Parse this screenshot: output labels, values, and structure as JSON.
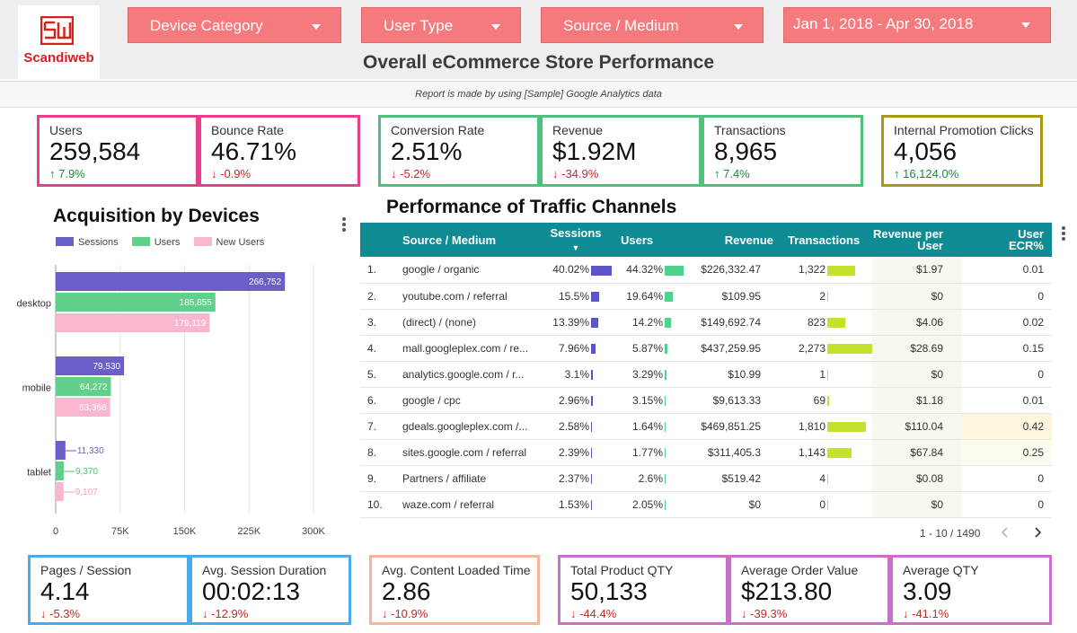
{
  "brand": {
    "name": "Scandiweb",
    "mark": "SW",
    "color": "#d52020"
  },
  "filters": {
    "device_category": "Device Category",
    "user_type": "User Type",
    "source_medium": "Source / Medium",
    "date_range": "Jan 1, 2018 - Apr 30, 2018"
  },
  "page_title": "Overall eCommerce Store Performance",
  "subtitle": "Report is made by using [Sample] Google Analytics data",
  "kpis_top": [
    {
      "label": "Users",
      "value": "259,584",
      "delta": "↑ 7.9%",
      "trend": "up"
    },
    {
      "label": "Bounce Rate",
      "value": "46.71%",
      "delta": "↓ -0.9%",
      "trend": "down"
    },
    {
      "label": "Conversion Rate",
      "value": "2.51%",
      "delta": "↓ -5.2%",
      "trend": "down"
    },
    {
      "label": "Revenue",
      "value": "$1.92M",
      "delta": "↓ -34.9%",
      "trend": "down"
    },
    {
      "label": "Transactions",
      "value": "8,965",
      "delta": "↑ 7.4%",
      "trend": "up"
    },
    {
      "label": "Internal Promotion Clicks",
      "value": "4,056",
      "delta": "↑ 16,124.0%",
      "trend": "up"
    }
  ],
  "kpis_bottom": [
    {
      "label": "Pages / Session",
      "value": "4.14",
      "delta": "↓ -5.3%",
      "trend": "down"
    },
    {
      "label": "Avg. Session Duration",
      "value": "00:02:13",
      "delta": "↓ -12.9%",
      "trend": "down"
    },
    {
      "label": "Avg. Content Loaded Time",
      "value": "2.86",
      "delta": "↓ -10.9%",
      "trend": "down"
    },
    {
      "label": "Total Product QTY",
      "value": "50,133",
      "delta": "↓ -44.4%",
      "trend": "down"
    },
    {
      "label": "Average Order Value",
      "value": "$213.80",
      "delta": "↓ -39.3%",
      "trend": "down"
    },
    {
      "label": "Average QTY",
      "value": "3.09",
      "delta": "↓ -41.1%",
      "trend": "down"
    }
  ],
  "colors": {
    "pink": "#e83e8c",
    "green": "#4fc17a",
    "olive": "#a89a10",
    "blue": "#4aa9e8",
    "peach": "#f3b69a",
    "violet": "#c670c9",
    "sessions": "#6a5fc8",
    "users": "#62d08a",
    "new_users": "#f8b6cf",
    "table_header": "#0f8b94",
    "sessions_bar": "#5b55c8",
    "users_bar": "#4dd38d",
    "transactions_bar": "#c3e22c"
  },
  "acquisition": {
    "title": "Acquisition by Devices",
    "chart_data": {
      "type": "bar",
      "orientation": "horizontal",
      "categories": [
        "desktop",
        "mobile",
        "tablet"
      ],
      "series": [
        {
          "name": "Sessions",
          "values": [
            266752,
            79530,
            11330
          ],
          "labels": [
            "266,752",
            "79,530",
            "11,330"
          ]
        },
        {
          "name": "Users",
          "values": [
            185855,
            64272,
            9370
          ],
          "labels": [
            "185,855",
            "64,272",
            "9,370"
          ]
        },
        {
          "name": "New Users",
          "values": [
            179119,
            63366,
            9107
          ],
          "labels": [
            "179,119",
            "63,366",
            "9,107"
          ]
        }
      ],
      "xlim": [
        0,
        300000
      ],
      "xticks": [
        0,
        75000,
        150000,
        225000,
        300000
      ],
      "xtick_labels": [
        "0",
        "75K",
        "150K",
        "225K",
        "300K"
      ],
      "legend": "top",
      "grid": true
    }
  },
  "traffic": {
    "title": "Performance of Traffic Channels",
    "columns": [
      "",
      "Source / Medium",
      "Sessions",
      "Users",
      "Revenue",
      "Transactions",
      "Revenue per User",
      "User ECR%"
    ],
    "rows": [
      {
        "idx": "1.",
        "source": "google / organic",
        "sessions": "40.02%",
        "sessions_v": 40.02,
        "users": "44.32%",
        "users_v": 44.32,
        "revenue": "$226,332.47",
        "transactions": "1,322",
        "transactions_v": 1322,
        "rpu": "$1.97",
        "ecr": "0.01"
      },
      {
        "idx": "2.",
        "source": "youtube.com / referral",
        "sessions": "15.5%",
        "sessions_v": 15.5,
        "users": "19.64%",
        "users_v": 19.64,
        "revenue": "$109.95",
        "transactions": "2",
        "transactions_v": 2,
        "rpu": "$0",
        "ecr": "0"
      },
      {
        "idx": "3.",
        "source": "(direct) / (none)",
        "sessions": "13.39%",
        "sessions_v": 13.39,
        "users": "14.2%",
        "users_v": 14.2,
        "revenue": "$149,692.74",
        "transactions": "823",
        "transactions_v": 823,
        "rpu": "$4.06",
        "ecr": "0.02"
      },
      {
        "idx": "4.",
        "source": "mall.googleplex.com / re...",
        "sessions": "7.96%",
        "sessions_v": 7.96,
        "users": "5.87%",
        "users_v": 5.87,
        "revenue": "$437,259.95",
        "transactions": "2,273",
        "transactions_v": 2273,
        "rpu": "$28.69",
        "ecr": "0.15"
      },
      {
        "idx": "5.",
        "source": "analytics.google.com / r...",
        "sessions": "3.1%",
        "sessions_v": 3.1,
        "users": "3.29%",
        "users_v": 3.29,
        "revenue": "$10.99",
        "transactions": "1",
        "transactions_v": 1,
        "rpu": "$0",
        "ecr": "0"
      },
      {
        "idx": "6.",
        "source": "google / cpc",
        "sessions": "2.96%",
        "sessions_v": 2.96,
        "users": "3.15%",
        "users_v": 3.15,
        "revenue": "$9,613.33",
        "transactions": "69",
        "transactions_v": 69,
        "rpu": "$1.18",
        "ecr": "0.01"
      },
      {
        "idx": "7.",
        "source": "gdeals.googleplex.com /...",
        "sessions": "2.58%",
        "sessions_v": 2.58,
        "users": "1.64%",
        "users_v": 1.64,
        "revenue": "$469,851.25",
        "transactions": "1,810",
        "transactions_v": 1810,
        "rpu": "$110.04",
        "ecr": "0.42"
      },
      {
        "idx": "8.",
        "source": "sites.google.com / referral",
        "sessions": "2.39%",
        "sessions_v": 2.39,
        "users": "1.77%",
        "users_v": 1.77,
        "revenue": "$311,405.3",
        "transactions": "1,143",
        "transactions_v": 1143,
        "rpu": "$67.84",
        "ecr": "0.25"
      },
      {
        "idx": "9.",
        "source": "Partners / affiliate",
        "sessions": "2.37%",
        "sessions_v": 2.37,
        "users": "2.6%",
        "users_v": 2.6,
        "revenue": "$519.42",
        "transactions": "4",
        "transactions_v": 4,
        "rpu": "$0.08",
        "ecr": "0"
      },
      {
        "idx": "10.",
        "source": "waze.com / referral",
        "sessions": "1.53%",
        "sessions_v": 1.53,
        "users": "2.05%",
        "users_v": 2.05,
        "revenue": "$0",
        "transactions": "0",
        "transactions_v": 0,
        "rpu": "$0",
        "ecr": "0"
      }
    ],
    "pagination": "1 - 10 / 1490"
  }
}
